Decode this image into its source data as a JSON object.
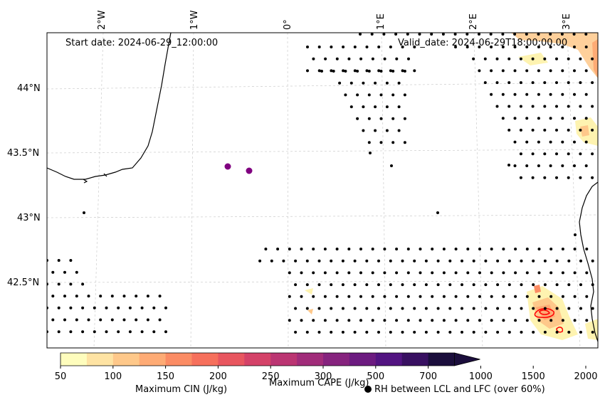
{
  "header": {
    "start_date": "Start date: 2024-06-29_12:00:00",
    "valid_date": "Valid_date: 2024-06-29T18:00:00.00"
  },
  "axes": {
    "longitude_labels": [
      "2°W",
      "1°W",
      "0°",
      "1°E",
      "2°E",
      "3°E"
    ],
    "latitude_labels": [
      "44°N",
      "43.5°N",
      "43°N",
      "42.5°N"
    ]
  },
  "colorbar": {
    "ticks": [
      "50",
      "100",
      "150",
      "200",
      "250",
      "300",
      "500",
      "700",
      "1000",
      "1500",
      "2000"
    ],
    "colors": [
      "#fefdbd",
      "#fee3a3",
      "#fec88a",
      "#feab75",
      "#fb8c64",
      "#f6705c",
      "#e8565f",
      "#d44268",
      "#bb3572",
      "#a12c7a",
      "#86237e",
      "#6c1b80",
      "#521481",
      "#381061",
      "#1b0e3c"
    ],
    "cape_label": "Maximum CAPE (J/kg)"
  },
  "legend": {
    "cin_label": "Maximum CIN (J/kg)",
    "cin_color": "#ff0000",
    "rh_label": "RH between LCL and LFC (over 60%)",
    "rh_marker": "dot-icon"
  },
  "markers": {
    "color": "#800080"
  }
}
